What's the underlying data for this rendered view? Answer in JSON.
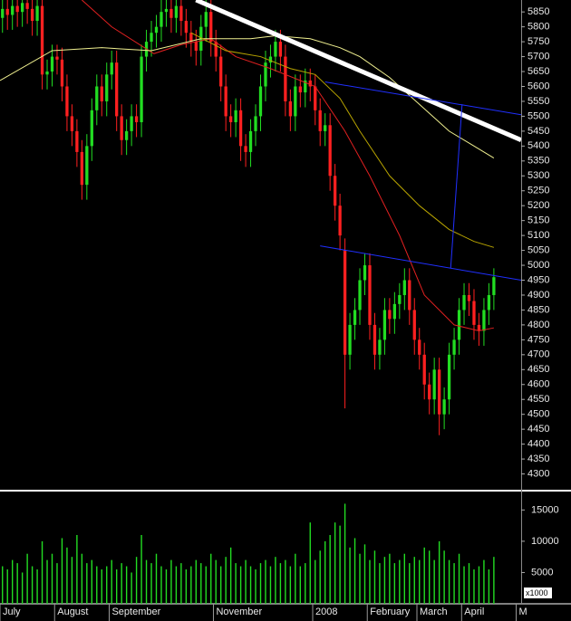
{
  "chart_data": {
    "type": "candlestick",
    "xlim": [
      -0.5,
      104.5
    ],
    "xticks": [
      {
        "value": -0.5,
        "label": "July"
      },
      {
        "value": 10.5,
        "label": "August"
      },
      {
        "value": 21.5,
        "label": "September"
      },
      {
        "value": 42.5,
        "label": "November"
      },
      {
        "value": 62.5,
        "label": "2008"
      },
      {
        "value": 73.5,
        "label": "February"
      },
      {
        "value": 83.5,
        "label": "March"
      },
      {
        "value": 92.5,
        "label": "April"
      },
      {
        "value": 103.5,
        "label": "M"
      }
    ],
    "ylim": [
      4250,
      5890
    ],
    "yticks": [
      4300,
      4350,
      4400,
      4450,
      4500,
      4550,
      4600,
      4650,
      4700,
      4750,
      4800,
      4850,
      4900,
      4950,
      5000,
      5050,
      5100,
      5150,
      5200,
      5250,
      5300,
      5350,
      5400,
      5450,
      5500,
      5550,
      5600,
      5650,
      5700,
      5750,
      5800,
      5850
    ],
    "up_color": "#22dd22",
    "down_color": "#ff2020",
    "open": [
      5830,
      5860,
      5840,
      5870,
      5850,
      5880,
      5860,
      5820,
      5870,
      5640,
      5650,
      5700,
      5690,
      5600,
      5500,
      5450,
      5380,
      5270,
      5400,
      5520,
      5600,
      5550,
      5640,
      5680,
      5500,
      5420,
      5450,
      5500,
      5480,
      5700,
      5750,
      5780,
      5800,
      5850,
      5860,
      5830,
      5870,
      5820,
      5780,
      5750,
      5720,
      5800,
      5850,
      5750,
      5700,
      5600,
      5500,
      5480,
      5520,
      5400,
      5380,
      5450,
      5500,
      5600,
      5680,
      5700,
      5750,
      5700,
      5550,
      5500,
      5600,
      5580,
      5620,
      5600,
      5520,
      5450,
      5470,
      5300,
      5200,
      5050,
      4700,
      4800,
      4850,
      4950,
      5000,
      4800,
      4700,
      4750,
      4850,
      4820,
      4870,
      4900,
      4950,
      4850,
      4750,
      4700,
      4600,
      4550,
      4650,
      4500,
      4550,
      4700,
      4750,
      4850,
      4900,
      4880,
      4800,
      4780,
      4850,
      4900
    ],
    "high": [
      5900,
      5900,
      5910,
      5910,
      5920,
      5920,
      5900,
      5910,
      5910,
      5690,
      5740,
      5740,
      5730,
      5640,
      5540,
      5490,
      5420,
      5440,
      5560,
      5640,
      5640,
      5680,
      5720,
      5720,
      5540,
      5490,
      5540,
      5540,
      5740,
      5790,
      5820,
      5840,
      5890,
      5900,
      5900,
      5910,
      5910,
      5860,
      5820,
      5790,
      5840,
      5890,
      5890,
      5790,
      5740,
      5640,
      5540,
      5560,
      5560,
      5440,
      5490,
      5540,
      5640,
      5720,
      5740,
      5790,
      5790,
      5740,
      5590,
      5640,
      5640,
      5660,
      5660,
      5640,
      5560,
      5510,
      5510,
      5340,
      5240,
      5090,
      4840,
      4890,
      4990,
      5040,
      5040,
      4840,
      4790,
      4890,
      4890,
      4910,
      4940,
      4990,
      4990,
      4890,
      4790,
      4740,
      4640,
      4690,
      4690,
      4590,
      4740,
      4790,
      4890,
      4940,
      4940,
      4920,
      4840,
      4890,
      4940,
      4990
    ],
    "low": [
      5780,
      5790,
      5790,
      5800,
      5800,
      5810,
      5770,
      5770,
      5590,
      5590,
      5600,
      5640,
      5550,
      5450,
      5400,
      5330,
      5220,
      5220,
      5350,
      5470,
      5500,
      5500,
      5590,
      5450,
      5370,
      5370,
      5400,
      5430,
      5430,
      5650,
      5700,
      5730,
      5750,
      5800,
      5780,
      5780,
      5770,
      5730,
      5700,
      5670,
      5670,
      5750,
      5700,
      5650,
      5550,
      5450,
      5430,
      5430,
      5350,
      5330,
      5330,
      5400,
      5450,
      5550,
      5630,
      5650,
      5650,
      5500,
      5450,
      5450,
      5530,
      5530,
      5550,
      5470,
      5400,
      5400,
      5250,
      5150,
      5050,
      4520,
      4650,
      4750,
      4800,
      4900,
      4750,
      4650,
      4650,
      4700,
      4770,
      4770,
      4820,
      4850,
      4800,
      4700,
      4650,
      4550,
      4500,
      4500,
      4430,
      4450,
      4500,
      4650,
      4700,
      4800,
      4830,
      4750,
      4730,
      4730,
      4800,
      4850
    ],
    "close": [
      5860,
      5840,
      5870,
      5850,
      5880,
      5860,
      5820,
      5870,
      5640,
      5650,
      5700,
      5690,
      5600,
      5500,
      5450,
      5380,
      5270,
      5400,
      5520,
      5600,
      5550,
      5640,
      5680,
      5500,
      5420,
      5450,
      5500,
      5480,
      5700,
      5750,
      5780,
      5800,
      5850,
      5860,
      5830,
      5870,
      5820,
      5780,
      5750,
      5720,
      5800,
      5850,
      5750,
      5700,
      5600,
      5500,
      5480,
      5520,
      5400,
      5380,
      5450,
      5500,
      5600,
      5680,
      5700,
      5750,
      5700,
      5550,
      5500,
      5600,
      5580,
      5620,
      5600,
      5520,
      5450,
      5470,
      5300,
      5200,
      5100,
      4700,
      4800,
      4850,
      4950,
      5000,
      4800,
      4700,
      4750,
      4850,
      4820,
      4870,
      4900,
      4950,
      4850,
      4750,
      4700,
      4600,
      4550,
      4650,
      4500,
      4550,
      4700,
      4750,
      4850,
      4900,
      4880,
      4800,
      4780,
      4850,
      4900,
      4960
    ],
    "overlays": [
      {
        "color": "#e02020",
        "x": [
          16,
          22,
          30.5,
          36,
          42,
          47,
          54,
          63,
          69,
          74,
          80,
          85,
          91,
          96,
          99
        ],
        "values": [
          5890,
          5800,
          5710,
          5740,
          5760,
          5700,
          5660,
          5600,
          5450,
          5300,
          5100,
          4900,
          4800,
          4780,
          4790
        ]
      },
      {
        "color": "#f0f090",
        "x": [
          -0.5,
          10,
          20,
          30,
          40,
          50,
          55,
          62,
          68,
          72,
          78,
          84,
          90,
          95,
          99
        ],
        "values": [
          5620,
          5720,
          5730,
          5720,
          5760,
          5760,
          5770,
          5760,
          5730,
          5700,
          5630,
          5540,
          5450,
          5400,
          5360
        ]
      },
      {
        "color": "#b8a400",
        "x": [
          38,
          45,
          52,
          58,
          63,
          68,
          72,
          78,
          84,
          90,
          95,
          99
        ],
        "values": [
          5780,
          5720,
          5700,
          5660,
          5640,
          5560,
          5450,
          5300,
          5200,
          5120,
          5080,
          5060
        ]
      }
    ],
    "trendlines": [
      {
        "color": "#ffffff",
        "line_width": 5,
        "x": [
          39,
          104.5
        ],
        "values": [
          5890,
          5420
        ]
      },
      {
        "color": "#2030ff",
        "line_width": 1,
        "x": [
          65,
          104.5
        ],
        "values": [
          5615,
          5505
        ]
      },
      {
        "color": "#2030ff",
        "line_width": 1,
        "x": [
          64,
          104.5
        ],
        "values": [
          5065,
          4950
        ]
      },
      {
        "color": "#2030ff",
        "line_width": 1,
        "x": [
          92.6,
          90.3
        ],
        "values": [
          5540,
          4990
        ]
      }
    ],
    "volume": {
      "color": "#22dd22",
      "unit_label": "x1000",
      "ylim": [
        0,
        17800
      ],
      "yticks": [
        5000,
        10000,
        15000
      ],
      "values": [
        6000,
        5500,
        7000,
        6500,
        5000,
        8000,
        6000,
        5500,
        10000,
        7000,
        8000,
        6500,
        10500,
        9000,
        7500,
        11000,
        8000,
        6500,
        7000,
        6000,
        5500,
        6000,
        7000,
        5500,
        6500,
        6000,
        5000,
        7500,
        11000,
        7000,
        6500,
        8000,
        6000,
        5500,
        7000,
        6000,
        6500,
        5500,
        6000,
        7000,
        6500,
        6000,
        8000,
        7000,
        6000,
        7500,
        9000,
        6500,
        6000,
        7000,
        6000,
        5500,
        6500,
        7000,
        6000,
        7500,
        6500,
        7000,
        6000,
        8000,
        6000,
        6500,
        13000,
        7000,
        8500,
        10000,
        11000,
        13000,
        12500,
        16000,
        9000,
        10500,
        8000,
        9500,
        7000,
        8500,
        6500,
        7500,
        8000,
        6500,
        7000,
        8000,
        6500,
        7500,
        7000,
        9000,
        8500,
        7000,
        10000,
        8500,
        7000,
        6500,
        8000,
        6000,
        6500,
        5500,
        6000,
        7000,
        5500,
        7500
      ]
    }
  }
}
